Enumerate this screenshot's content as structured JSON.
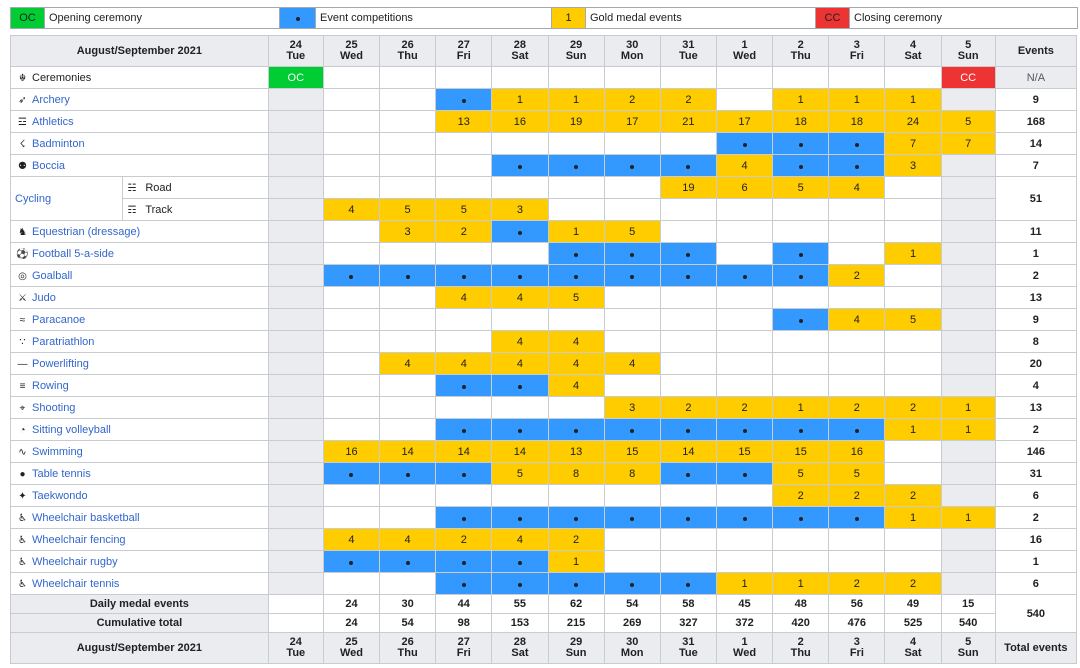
{
  "legend": {
    "oc_code": "OC",
    "oc_label": "Opening ceremony",
    "comp_label": "Event competitions",
    "gold_code": "1",
    "gold_label": "Gold medal events",
    "cc_code": "CC",
    "cc_label": "Closing ceremony"
  },
  "header": {
    "title": "August/September 2021",
    "events": "Events",
    "total_events": "Total events",
    "days": [
      {
        "num": "24",
        "dow": "Tue"
      },
      {
        "num": "25",
        "dow": "Wed"
      },
      {
        "num": "26",
        "dow": "Thu"
      },
      {
        "num": "27",
        "dow": "Fri"
      },
      {
        "num": "28",
        "dow": "Sat"
      },
      {
        "num": "29",
        "dow": "Sun"
      },
      {
        "num": "30",
        "dow": "Mon"
      },
      {
        "num": "31",
        "dow": "Tue"
      },
      {
        "num": "1",
        "dow": "Wed"
      },
      {
        "num": "2",
        "dow": "Thu"
      },
      {
        "num": "3",
        "dow": "Fri"
      },
      {
        "num": "4",
        "dow": "Sat"
      },
      {
        "num": "5",
        "dow": "Sun"
      }
    ]
  },
  "ceremonies": {
    "name": "Ceremonies",
    "icon": "ceremony-icon",
    "oc": "OC",
    "cc": "CC",
    "total": "N/A"
  },
  "sports": [
    {
      "name": "Archery",
      "icon": "archery-icon",
      "cells": [
        "",
        "",
        "",
        "•",
        "1",
        "1",
        "2",
        "2",
        "",
        "1",
        "1",
        "1",
        ""
      ],
      "total": "9"
    },
    {
      "name": "Athletics",
      "icon": "athletics-icon",
      "cells": [
        "",
        "",
        "",
        "13",
        "16",
        "19",
        "17",
        "21",
        "17",
        "18",
        "18",
        "24",
        "5"
      ],
      "total": "168"
    },
    {
      "name": "Badminton",
      "icon": "badminton-icon",
      "cells": [
        "",
        "",
        "",
        "",
        "",
        "",
        "",
        "",
        "•",
        "•",
        "•",
        "7",
        "7"
      ],
      "total": "14"
    },
    {
      "name": "Boccia",
      "icon": "boccia-icon",
      "cells": [
        "",
        "",
        "",
        "",
        "•",
        "•",
        "•",
        "•",
        "4",
        "•",
        "•",
        "3",
        ""
      ],
      "total": "7"
    }
  ],
  "cycling": {
    "name": "Cycling",
    "road": {
      "name": "Road",
      "cells": [
        "",
        "",
        "",
        "",
        "",
        "",
        "",
        "19",
        "6",
        "5",
        "4",
        "",
        ""
      ]
    },
    "track": {
      "name": "Track",
      "cells": [
        "",
        "4",
        "5",
        "5",
        "3",
        "",
        "",
        "",
        "",
        "",
        "",
        "",
        ""
      ]
    },
    "total": "51"
  },
  "sports2": [
    {
      "name": "Equestrian (dressage)",
      "icon": "equestrian-icon",
      "cells": [
        "",
        "",
        "3",
        "2",
        "•",
        "1",
        "5",
        "",
        "",
        "",
        "",
        "",
        ""
      ],
      "total": "11"
    },
    {
      "name": "Football 5-a-side",
      "icon": "football-icon",
      "cells": [
        "",
        "",
        "",
        "",
        "",
        "•",
        "•",
        "•",
        "",
        "•",
        "",
        "1",
        ""
      ],
      "total": "1"
    },
    {
      "name": "Goalball",
      "icon": "goalball-icon",
      "cells": [
        "",
        "•",
        "•",
        "•",
        "•",
        "•",
        "•",
        "•",
        "•",
        "•",
        "2",
        "",
        ""
      ],
      "total": "2"
    },
    {
      "name": "Judo",
      "icon": "judo-icon",
      "cells": [
        "",
        "",
        "",
        "4",
        "4",
        "5",
        "",
        "",
        "",
        "",
        "",
        "",
        ""
      ],
      "total": "13"
    },
    {
      "name": "Paracanoe",
      "icon": "paracanoe-icon",
      "cells": [
        "",
        "",
        "",
        "",
        "",
        "",
        "",
        "",
        "",
        "•",
        "4",
        "5",
        ""
      ],
      "total": "9"
    },
    {
      "name": "Paratriathlon",
      "icon": "paratriathlon-icon",
      "cells": [
        "",
        "",
        "",
        "",
        "4",
        "4",
        "",
        "",
        "",
        "",
        "",
        "",
        ""
      ],
      "total": "8"
    },
    {
      "name": "Powerlifting",
      "icon": "powerlifting-icon",
      "cells": [
        "",
        "",
        "4",
        "4",
        "4",
        "4",
        "4",
        "",
        "",
        "",
        "",
        "",
        ""
      ],
      "total": "20"
    },
    {
      "name": "Rowing",
      "icon": "rowing-icon",
      "cells": [
        "",
        "",
        "",
        "•",
        "•",
        "4",
        "",
        "",
        "",
        "",
        "",
        "",
        ""
      ],
      "total": "4"
    },
    {
      "name": "Shooting",
      "icon": "shooting-icon",
      "cells": [
        "",
        "",
        "",
        "",
        "",
        "",
        "3",
        "2",
        "2",
        "1",
        "2",
        "2",
        "1"
      ],
      "total": "13"
    },
    {
      "name": "Sitting volleyball",
      "icon": "volleyball-icon",
      "cells": [
        "",
        "",
        "",
        "•",
        "•",
        "•",
        "•",
        "•",
        "•",
        "•",
        "•",
        "1",
        "1"
      ],
      "total": "2"
    },
    {
      "name": "Swimming",
      "icon": "swimming-icon",
      "cells": [
        "",
        "16",
        "14",
        "14",
        "14",
        "13",
        "15",
        "14",
        "15",
        "15",
        "16",
        "",
        ""
      ],
      "total": "146"
    },
    {
      "name": "Table tennis",
      "icon": "table-tennis-icon",
      "cells": [
        "",
        "•",
        "•",
        "•",
        "5",
        "8",
        "8",
        "•",
        "•",
        "5",
        "5",
        "",
        ""
      ],
      "total": "31"
    },
    {
      "name": "Taekwondo",
      "icon": "taekwondo-icon",
      "cells": [
        "",
        "",
        "",
        "",
        "",
        "",
        "",
        "",
        "",
        "2",
        "2",
        "2",
        ""
      ],
      "total": "6"
    },
    {
      "name": "Wheelchair basketball",
      "icon": "wheelchair-basketball-icon",
      "cells": [
        "",
        "",
        "",
        "•",
        "•",
        "•",
        "•",
        "•",
        "•",
        "•",
        "•",
        "1",
        "1"
      ],
      "total": "2"
    },
    {
      "name": "Wheelchair fencing",
      "icon": "wheelchair-fencing-icon",
      "cells": [
        "",
        "4",
        "4",
        "2",
        "4",
        "2",
        "",
        "",
        "",
        "",
        "",
        "",
        ""
      ],
      "total": "16"
    },
    {
      "name": "Wheelchair rugby",
      "icon": "wheelchair-rugby-icon",
      "cells": [
        "",
        "•",
        "•",
        "•",
        "•",
        "1",
        "",
        "",
        "",
        "",
        "",
        "",
        ""
      ],
      "total": "1"
    },
    {
      "name": "Wheelchair tennis",
      "icon": "wheelchair-tennis-icon",
      "cells": [
        "",
        "",
        "",
        "•",
        "•",
        "•",
        "•",
        "•",
        "1",
        "1",
        "2",
        "2",
        ""
      ],
      "total": "6"
    }
  ],
  "daily": {
    "label": "Daily medal events",
    "values": [
      "",
      "24",
      "30",
      "44",
      "55",
      "62",
      "54",
      "58",
      "45",
      "48",
      "56",
      "49",
      "15"
    ]
  },
  "cumulative": {
    "label": "Cumulative total",
    "values": [
      "",
      "24",
      "54",
      "98",
      "153",
      "215",
      "269",
      "327",
      "372",
      "420",
      "476",
      "525",
      "540"
    ]
  },
  "grand_total": "540",
  "colors": {
    "oc": "#00cc33",
    "competition": "#3399ff",
    "gold": "#ffcc00",
    "cc": "#ee3333",
    "rest": "#eaecf0"
  }
}
